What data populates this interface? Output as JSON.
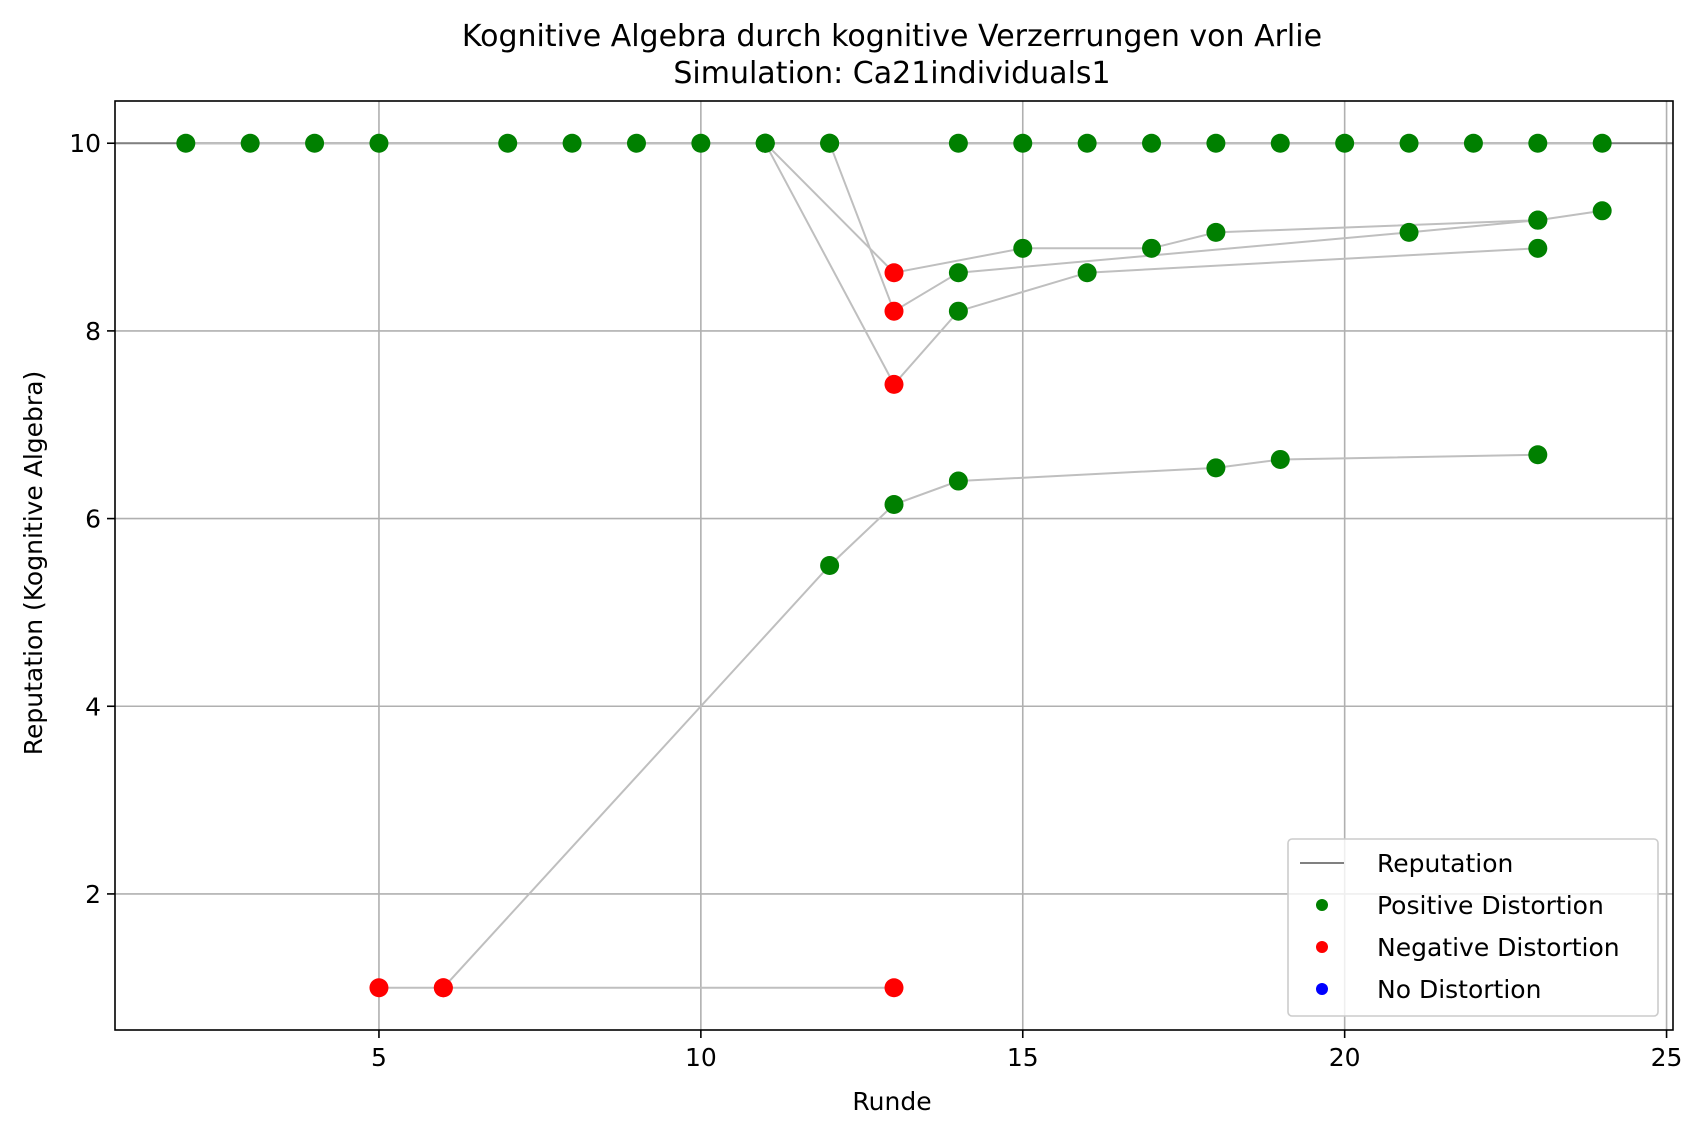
{
  "chart_data": {
    "type": "scatter",
    "title": "Kognitive Algebra durch kognitive Verzerrungen von Arlie",
    "subtitle": "Simulation: Ca21individuals1",
    "xlabel": "Runde",
    "ylabel": "Reputation (Kognitive Algebra)",
    "xlim": [
      0.9,
      25.1
    ],
    "ylim": [
      0.55,
      10.45
    ],
    "x_ticks": [
      5,
      10,
      15,
      20,
      25
    ],
    "y_ticks": [
      2,
      4,
      6,
      8,
      10
    ],
    "grid": true,
    "legend_position": "lower right",
    "colors": {
      "reputation_line": "#808080",
      "connector": "#bfbfbf",
      "positive": "#008000",
      "negative": "#ff0000",
      "none": "#0000ff"
    },
    "legend": [
      {
        "label": "Reputation",
        "marker": "line",
        "color": "#808080"
      },
      {
        "label": "Positive Distortion",
        "marker": "dot",
        "color": "#008000"
      },
      {
        "label": "Negative Distortion",
        "marker": "dot",
        "color": "#ff0000"
      },
      {
        "label": "No Distortion",
        "marker": "dot",
        "color": "#0000ff"
      }
    ],
    "series": [
      {
        "points": [
          [
            2,
            10
          ],
          [
            3,
            10
          ],
          [
            4,
            10
          ],
          [
            5,
            10
          ],
          [
            7,
            10
          ],
          [
            8,
            10
          ],
          [
            9,
            10
          ],
          [
            10,
            10
          ],
          [
            11,
            10
          ],
          [
            12,
            10
          ],
          [
            14,
            10
          ],
          [
            15,
            10
          ],
          [
            16,
            10
          ],
          [
            17,
            10
          ],
          [
            18,
            10
          ],
          [
            19,
            10
          ],
          [
            20,
            10
          ],
          [
            21,
            10
          ],
          [
            22,
            10
          ],
          [
            23,
            10
          ],
          [
            24,
            10
          ]
        ],
        "distortion": [
          "positive",
          "positive",
          "positive",
          "positive",
          "positive",
          "positive",
          "positive",
          "positive",
          "positive",
          "positive",
          "positive",
          "positive",
          "positive",
          "positive",
          "positive",
          "positive",
          "positive",
          "positive",
          "positive",
          "positive",
          "positive"
        ]
      },
      {
        "points": [
          [
            11,
            10
          ],
          [
            13,
            8.62
          ],
          [
            15,
            8.88
          ],
          [
            17,
            8.88
          ],
          [
            18,
            9.05
          ],
          [
            23,
            9.18
          ],
          [
            24,
            9.28
          ]
        ],
        "distortion": [
          "positive",
          "negative",
          "positive",
          "positive",
          "positive",
          "positive",
          "positive"
        ]
      },
      {
        "points": [
          [
            11,
            10
          ],
          [
            13,
            7.43
          ],
          [
            14,
            8.21
          ],
          [
            16,
            8.62
          ],
          [
            23,
            8.88
          ]
        ],
        "distortion": [
          "positive",
          "negative",
          "positive",
          "positive",
          "positive"
        ]
      },
      {
        "points": [
          [
            12,
            10
          ],
          [
            13,
            8.21
          ],
          [
            14,
            8.62
          ],
          [
            21,
            9.05
          ],
          [
            23,
            9.18
          ]
        ],
        "distortion": [
          "positive",
          "negative",
          "positive",
          "positive",
          "positive"
        ]
      },
      {
        "points": [
          [
            5,
            1
          ],
          [
            6,
            1
          ],
          [
            13,
            1
          ]
        ],
        "distortion": [
          "negative",
          "negative",
          "negative"
        ]
      },
      {
        "points": [
          [
            6,
            1
          ],
          [
            12,
            5.5
          ],
          [
            13,
            6.15
          ],
          [
            14,
            6.4
          ],
          [
            18,
            6.54
          ],
          [
            19,
            6.63
          ],
          [
            23,
            6.68
          ]
        ],
        "distortion": [
          "negative",
          "positive",
          "positive",
          "positive",
          "positive",
          "positive",
          "positive"
        ]
      }
    ]
  }
}
